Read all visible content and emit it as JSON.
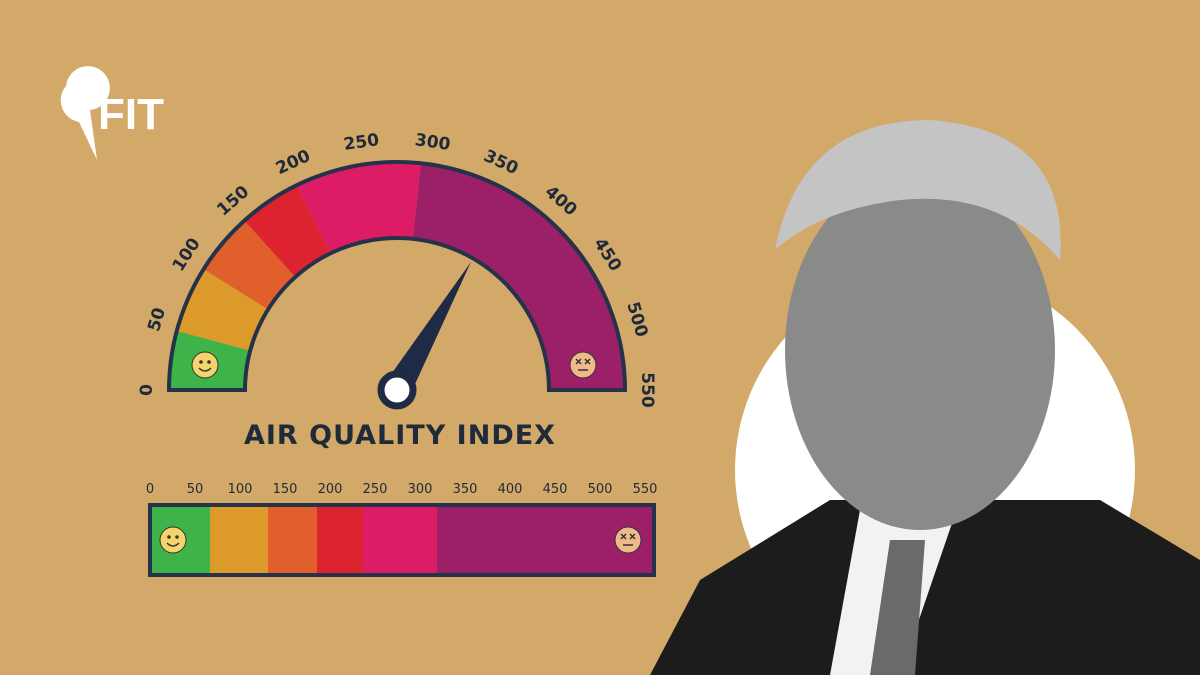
{
  "logo": "FIT",
  "gauge": {
    "labels": [
      0,
      50,
      100,
      150,
      200,
      250,
      300,
      350,
      400,
      450,
      500,
      550
    ]
  },
  "title": "AIR QUALITY INDEX",
  "bar": {
    "labels": [
      0,
      50,
      100,
      150,
      200,
      250,
      300,
      350,
      400,
      450,
      500,
      550
    ]
  }
}
